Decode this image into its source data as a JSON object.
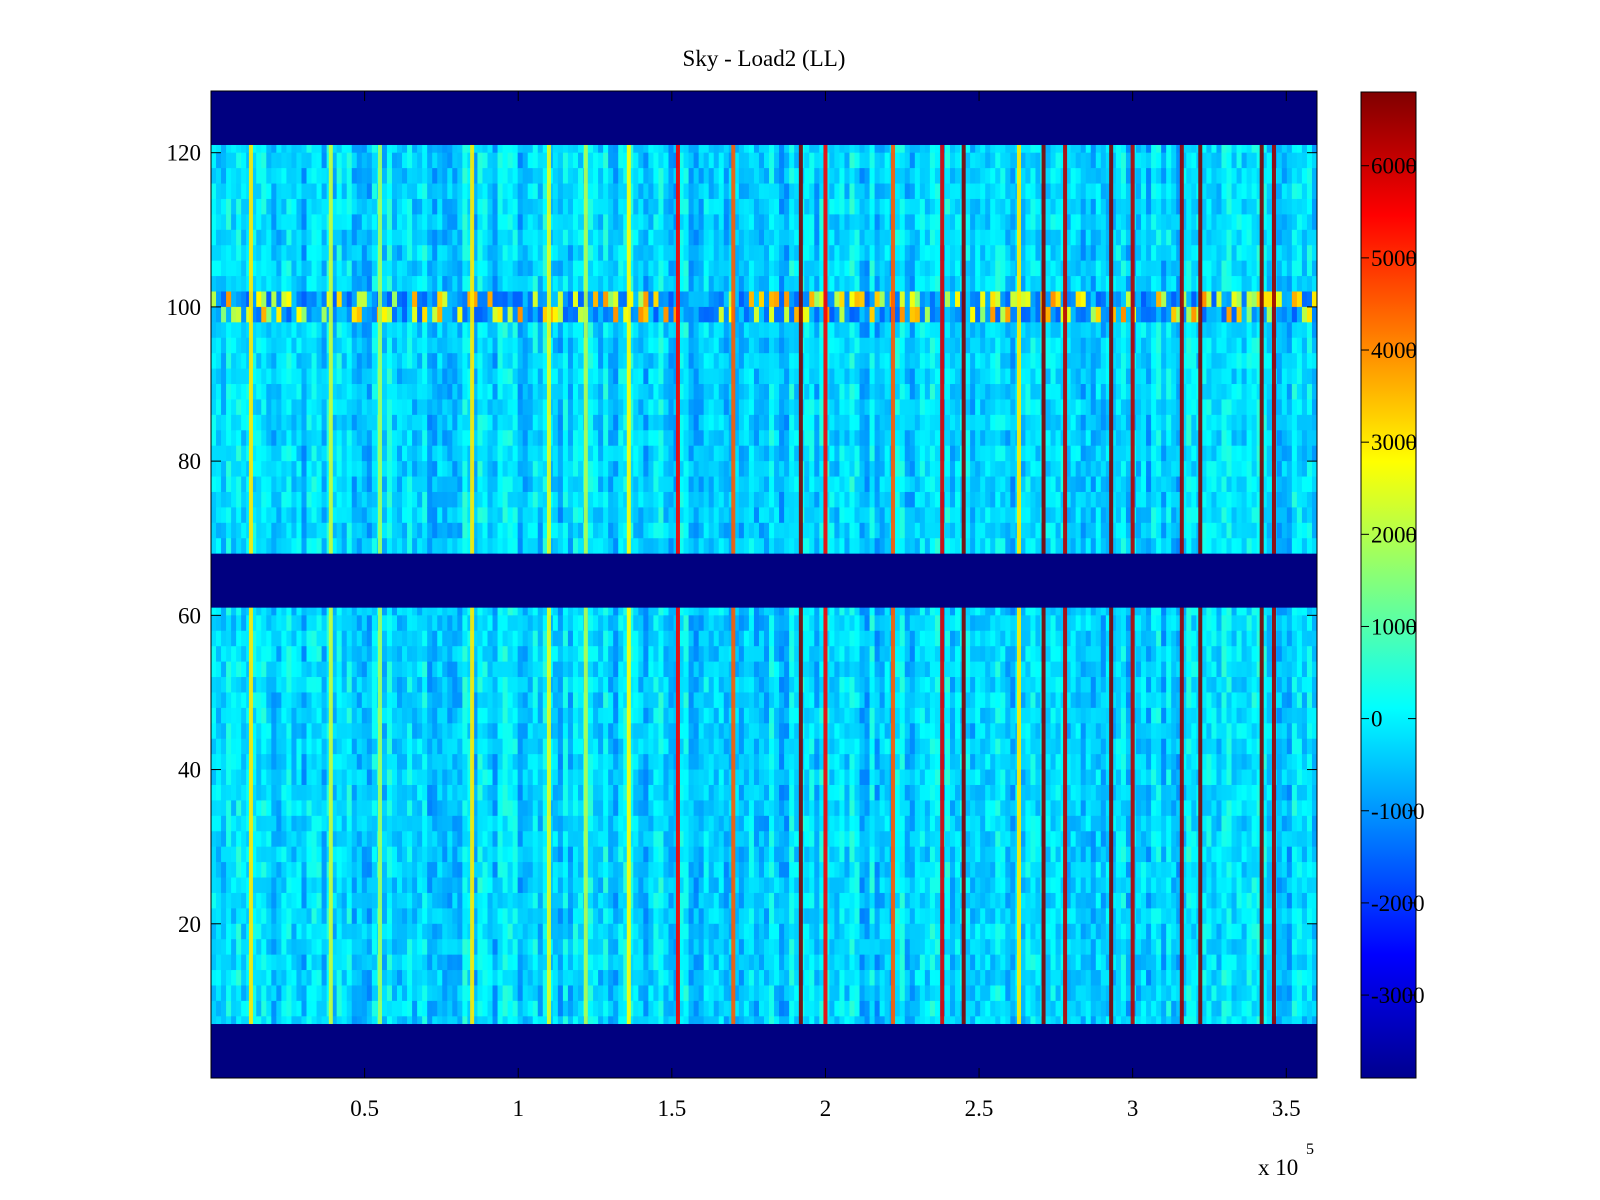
{
  "chart_data": {
    "type": "heatmap",
    "title": "Sky - Load2 (LL)",
    "xlabel": "",
    "ylabel": "",
    "x_multiplier_label": {
      "base": "x 10",
      "exponent": "5"
    },
    "xlim": [
      0,
      3.6
    ],
    "ylim": [
      0,
      128
    ],
    "x_ticks": [
      0.5,
      1,
      1.5,
      2,
      2.5,
      3,
      3.5
    ],
    "x_tick_labels": [
      "0.5",
      "1",
      "1.5",
      "2",
      "2.5",
      "3",
      "3.5"
    ],
    "y_ticks": [
      20,
      40,
      60,
      80,
      100,
      120
    ],
    "y_tick_labels": [
      "20",
      "40",
      "60",
      "80",
      "100",
      "120"
    ],
    "colorbar": {
      "colormap": "jet",
      "clim": [
        -3900,
        6800
      ],
      "ticks": [
        -3000,
        -2000,
        -1000,
        0,
        1000,
        2000,
        3000,
        4000,
        5000,
        6000
      ],
      "tick_labels": [
        "-3000",
        "-2000",
        "-1000",
        "0",
        "1000",
        "2000",
        "3000",
        "4000",
        "5000",
        "6000"
      ]
    },
    "masked_row_ranges": [
      [
        0,
        7
      ],
      [
        61,
        68
      ],
      [
        121,
        128
      ]
    ],
    "masked_value": -3900,
    "baseline_value": -300,
    "enhanced_row_band": [
      98,
      101
    ],
    "vertical_streaks": [
      {
        "x": 0.13,
        "value": 3000
      },
      {
        "x": 0.39,
        "value": 2200
      },
      {
        "x": 0.55,
        "value": 1800
      },
      {
        "x": 0.85,
        "value": 3000
      },
      {
        "x": 1.1,
        "value": 2500
      },
      {
        "x": 1.22,
        "value": 2000
      },
      {
        "x": 1.36,
        "value": 2800
      },
      {
        "x": 1.52,
        "value": 5500
      },
      {
        "x": 1.7,
        "value": 4500
      },
      {
        "x": 1.92,
        "value": 6800
      },
      {
        "x": 2.0,
        "value": 5500
      },
      {
        "x": 2.22,
        "value": 4500
      },
      {
        "x": 2.38,
        "value": 5800
      },
      {
        "x": 2.45,
        "value": 6800
      },
      {
        "x": 2.63,
        "value": 3000
      },
      {
        "x": 2.71,
        "value": 6800
      },
      {
        "x": 2.78,
        "value": 6200
      },
      {
        "x": 2.93,
        "value": 6800
      },
      {
        "x": 3.0,
        "value": 6200
      },
      {
        "x": 3.16,
        "value": 6500
      },
      {
        "x": 3.22,
        "value": 6800
      },
      {
        "x": 3.42,
        "value": 6800
      },
      {
        "x": 3.46,
        "value": 6500
      }
    ],
    "grid": false,
    "legend": "colorbar-right"
  }
}
